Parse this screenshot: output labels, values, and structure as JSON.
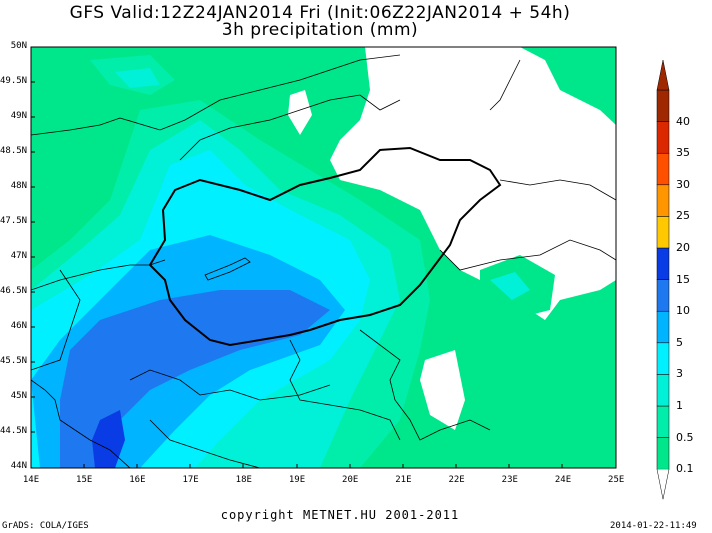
{
  "title": {
    "line1": "GFS Valid:12Z24JAN2014 Fri (Init:06Z22JAN2014 + 54h)",
    "line2": "3h precipitation (mm)"
  },
  "lat_labels": [
    "50N",
    "49.5N",
    "49N",
    "48.5N",
    "48N",
    "47.5N",
    "47N",
    "46.5N",
    "46N",
    "45.5N",
    "45N",
    "44.5N",
    "44N"
  ],
  "lon_labels": [
    "14E",
    "15E",
    "16E",
    "17E",
    "18E",
    "19E",
    "20E",
    "21E",
    "22E",
    "23E",
    "24E",
    "25E"
  ],
  "colorbar": {
    "levels": [
      "0.1",
      "0.5",
      "1",
      "3",
      "5",
      "10",
      "15",
      "20",
      "25",
      "30",
      "35",
      "40"
    ],
    "colors": [
      "#00e68a",
      "#00eeaa",
      "#00f0d8",
      "#00f0ff",
      "#00b4ff",
      "#1e78f0",
      "#0a3ce6",
      "#ffc800",
      "#ff9600",
      "#ff5000",
      "#dc2800",
      "#a02800"
    ]
  },
  "field_colors": {
    "p01": "#00e68a",
    "p05": "#00eeaa",
    "p1": "#00f0d8",
    "p3": "#00f0ff",
    "p5": "#00b4ff",
    "p10": "#1e78f0",
    "dry": "#ffffff"
  },
  "credit": "copyright METNET.HU 2001-2011",
  "footer_left": "GrADS: COLA/IGES",
  "footer_right": "2014-01-22-11:49"
}
